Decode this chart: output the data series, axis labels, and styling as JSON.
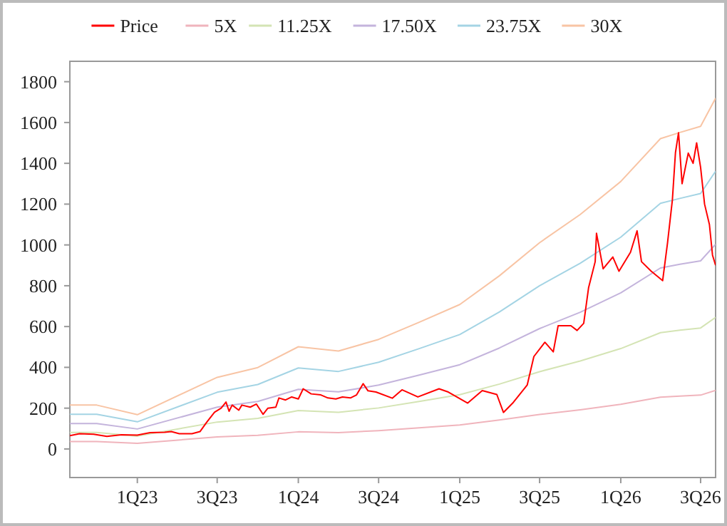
{
  "chart_data": {
    "type": "line",
    "xlim": [
      "2022-08-01",
      "2026-08-04"
    ],
    "ylim": [
      -140,
      1900
    ],
    "xticks": [
      {
        "value": "2023-01-01",
        "label": "1Q23"
      },
      {
        "value": "2023-07-01",
        "label": "3Q23"
      },
      {
        "value": "2024-01-01",
        "label": "1Q24"
      },
      {
        "value": "2024-07-01",
        "label": "3Q24"
      },
      {
        "value": "2025-01-01",
        "label": "1Q25"
      },
      {
        "value": "2025-07-01",
        "label": "3Q25"
      },
      {
        "value": "2026-01-01",
        "label": "1Q26"
      },
      {
        "value": "2026-07-01",
        "label": "3Q26"
      }
    ],
    "yticks": [
      0,
      200,
      400,
      600,
      800,
      1000,
      1200,
      1400,
      1600,
      1800
    ],
    "grid": false,
    "legend": "top",
    "line_style": "solid",
    "marker": "none",
    "x": [
      "2022-08-01",
      "2022-10-01",
      "2023-01-01",
      "2023-07-01",
      "2023-10-01",
      "2024-01-01",
      "2024-04-01",
      "2024-07-01",
      "2024-10-01",
      "2025-01-01",
      "2025-04-01",
      "2025-07-01",
      "2025-10-01",
      "2026-01-01",
      "2026-04-01",
      "2026-05-15",
      "2026-07-01",
      "2026-08-04"
    ],
    "series": [
      {
        "name": "Price",
        "color": "#ff0000",
        "x": [
          "2022-08-01",
          "2022-08-23",
          "2022-09-24",
          "2022-10-24",
          "2022-11-26",
          "2023-01-01",
          "2023-01-30",
          "2023-03-04",
          "2023-03-19",
          "2023-04-06",
          "2023-05-05",
          "2023-05-23",
          "2023-06-07",
          "2023-06-25",
          "2023-07-10",
          "2023-07-21",
          "2023-07-28",
          "2023-08-04",
          "2023-08-19",
          "2023-08-26",
          "2023-09-14",
          "2023-09-28",
          "2023-10-13",
          "2023-10-24",
          "2023-11-11",
          "2023-11-18",
          "2023-12-03",
          "2023-12-17",
          "2024-01-01",
          "2024-01-12",
          "2024-01-30",
          "2024-02-21",
          "2024-03-08",
          "2024-03-26",
          "2024-04-10",
          "2024-04-28",
          "2024-05-12",
          "2024-05-27",
          "2024-06-07",
          "2024-06-25",
          "2024-08-01",
          "2024-08-23",
          "2024-09-28",
          "2024-11-15",
          "2024-12-06",
          "2025-01-19",
          "2025-02-21",
          "2025-03-26",
          "2025-04-10",
          "2025-05-01",
          "2025-06-03",
          "2025-06-18",
          "2025-07-13",
          "2025-08-01",
          "2025-08-12",
          "2025-09-10",
          "2025-09-24",
          "2025-10-09",
          "2025-10-20",
          "2025-11-04",
          "2025-11-07",
          "2025-11-22",
          "2025-12-14",
          "2025-12-28",
          "2026-01-23",
          "2026-02-07",
          "2026-02-17",
          "2026-03-11",
          "2026-04-06",
          "2026-04-17",
          "2026-04-28",
          "2026-05-05",
          "2026-05-12",
          "2026-05-20",
          "2026-06-03",
          "2026-06-14",
          "2026-06-22",
          "2026-07-01",
          "2026-07-10",
          "2026-07-21",
          "2026-07-28",
          "2026-08-04"
        ],
        "values": [
          65,
          75,
          72,
          62,
          70,
          68,
          80,
          82,
          85,
          75,
          75,
          85,
          130,
          180,
          200,
          230,
          185,
          215,
          190,
          215,
          205,
          220,
          170,
          200,
          205,
          250,
          240,
          255,
          245,
          295,
          270,
          265,
          250,
          245,
          255,
          250,
          265,
          320,
          285,
          279,
          249,
          290,
          255,
          295,
          279,
          225,
          286,
          267,
          179,
          225,
          314,
          453,
          523,
          476,
          604,
          604,
          581,
          616,
          790,
          918,
          1057,
          883,
          941,
          871,
          964,
          1069,
          918,
          871,
          825,
          1010,
          1220,
          1452,
          1550,
          1300,
          1450,
          1400,
          1500,
          1380,
          1200,
          1100,
          950,
          900
        ]
      },
      {
        "name": "5X",
        "color": "#f0b4bc",
        "values": [
          36,
          36,
          28,
          59,
          67,
          84,
          80,
          90,
          104,
          118,
          142,
          169,
          192,
          219,
          254,
          259,
          264,
          287
        ]
      },
      {
        "name": "11.25X",
        "color": "#d4e4b4",
        "values": [
          81,
          81,
          63,
          132,
          150,
          188,
          180,
          201,
          233,
          266,
          318,
          379,
          431,
          492,
          570,
          582,
          593,
          645
        ]
      },
      {
        "name": "17.50X",
        "color": "#c4b4dc",
        "values": [
          125,
          125,
          98,
          205,
          233,
          292,
          280,
          313,
          362,
          413,
          495,
          590,
          670,
          765,
          887,
          905,
          922,
          1003
        ]
      },
      {
        "name": "23.75X",
        "color": "#a4d4e4",
        "values": [
          170,
          170,
          133,
          278,
          316,
          397,
          380,
          425,
          492,
          561,
          672,
          800,
          910,
          1038,
          1204,
          1228,
          1252,
          1361
        ]
      },
      {
        "name": "30X",
        "color": "#f8c4a4",
        "values": [
          215,
          215,
          168,
          351,
          399,
          501,
          480,
          537,
          621,
          708,
          849,
          1011,
          1149,
          1311,
          1521,
          1551,
          1581,
          1719
        ]
      }
    ]
  }
}
